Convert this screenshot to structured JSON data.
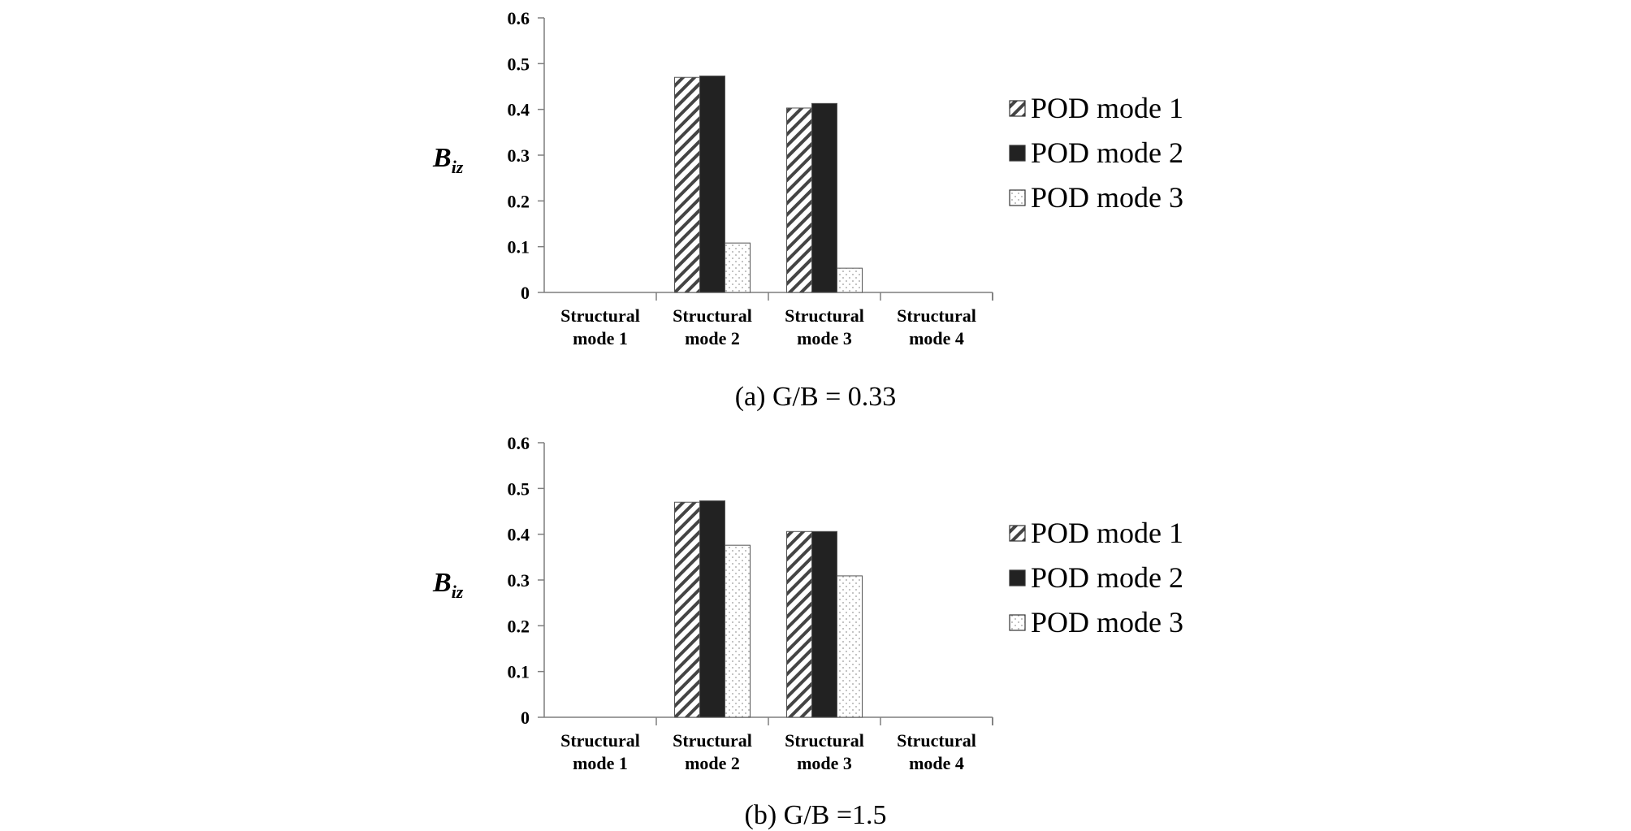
{
  "chart_data": [
    {
      "type": "bar",
      "caption": "(a) G/B = 0.33",
      "ylabel_main": "B",
      "ylabel_sub": "iz",
      "ylim": [
        0,
        0.6
      ],
      "yticks": [
        "0",
        "0.1",
        "0.2",
        "0.3",
        "0.4",
        "0.5",
        "0.6"
      ],
      "categories": [
        [
          "Structural",
          "mode 1"
        ],
        [
          "Structural",
          "mode 2"
        ],
        [
          "Structural",
          "mode 3"
        ],
        [
          "Structural",
          "mode 4"
        ]
      ],
      "series": [
        {
          "name": "POD mode 1",
          "pattern": "hatch",
          "values": [
            0,
            0.47,
            0.403,
            0
          ]
        },
        {
          "name": "POD mode 2",
          "pattern": "solid",
          "values": [
            0,
            0.473,
            0.413,
            0
          ]
        },
        {
          "name": "POD mode 3",
          "pattern": "dots",
          "values": [
            0,
            0.108,
            0.053,
            0
          ]
        }
      ],
      "grid": false,
      "legend": "right"
    },
    {
      "type": "bar",
      "caption": "(b) G/B =1.5",
      "ylabel_main": "B",
      "ylabel_sub": "iz",
      "ylim": [
        0,
        0.6
      ],
      "yticks": [
        "0",
        "0.1",
        "0.2",
        "0.3",
        "0.4",
        "0.5",
        "0.6"
      ],
      "categories": [
        [
          "Structural",
          "mode 1"
        ],
        [
          "Structural",
          "mode 2"
        ],
        [
          "Structural",
          "mode 3"
        ],
        [
          "Structural",
          "mode 4"
        ]
      ],
      "series": [
        {
          "name": "POD mode 1",
          "pattern": "hatch",
          "values": [
            0,
            0.47,
            0.406,
            0
          ]
        },
        {
          "name": "POD mode 2",
          "pattern": "solid",
          "values": [
            0,
            0.473,
            0.406,
            0
          ]
        },
        {
          "name": "POD mode 3",
          "pattern": "dots",
          "values": [
            0,
            0.376,
            0.309,
            0
          ]
        }
      ],
      "grid": false,
      "legend": "right"
    }
  ]
}
